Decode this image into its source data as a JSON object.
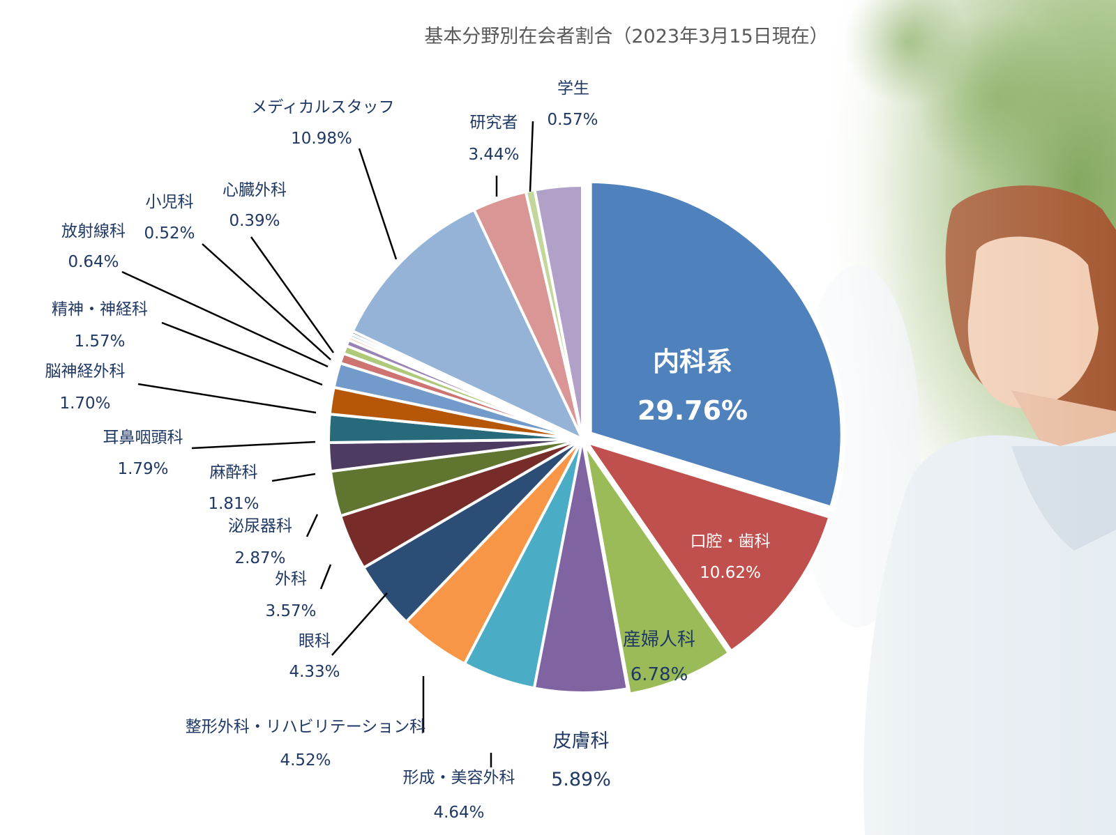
{
  "title": "基本分野別在会者割合（2023年3月15日現在）",
  "colors": {
    "leader_line": "#000000",
    "label_text": "#1f3864",
    "title_text": "#595959"
  },
  "chart_data": {
    "type": "pie",
    "title": "基本分野別在会者割合（2023年3月15日現在）",
    "unit": "%",
    "start": "12 o'clock",
    "direction": "clockwise",
    "slices": [
      {
        "label": "内科系",
        "value": 29.76,
        "value_label": "29.76%",
        "color": "#4f81bd"
      },
      {
        "label": "口腔・歯科",
        "value": 10.62,
        "value_label": "10.62%",
        "color": "#c0504d"
      },
      {
        "label": "産婦人科",
        "value": 6.78,
        "value_label": "6.78%",
        "color": "#9bbb59"
      },
      {
        "label": "皮膚科",
        "value": 5.89,
        "value_label": "5.89%",
        "color": "#8064a2"
      },
      {
        "label": "形成・美容外科",
        "value": 4.64,
        "value_label": "4.64%",
        "color": "#4bacc6"
      },
      {
        "label": "整形外科・リハビリテーション科",
        "value": 4.52,
        "value_label": "4.52%",
        "color": "#f79646"
      },
      {
        "label": "眼科",
        "value": 4.33,
        "value_label": "4.33%",
        "color": "#2c4d75"
      },
      {
        "label": "外科",
        "value": 3.57,
        "value_label": "3.57%",
        "color": "#772c2a"
      },
      {
        "label": "泌尿器科",
        "value": 2.87,
        "value_label": "2.87%",
        "color": "#5f7530"
      },
      {
        "label": "麻酔科",
        "value": 1.81,
        "value_label": "1.81%",
        "color": "#4d3b62"
      },
      {
        "label": "耳鼻咽頭科",
        "value": 1.79,
        "value_label": "1.79%",
        "color": "#276a7c"
      },
      {
        "label": "脳神経外科",
        "value": 1.7,
        "value_label": "1.70%",
        "color": "#b65708"
      },
      {
        "label": "精神・神経科",
        "value": 1.57,
        "value_label": "1.57%",
        "color": "#729aca"
      },
      {
        "label": "放射線科",
        "value": 0.64,
        "value_label": "0.64%",
        "color": "#cd7371"
      },
      {
        "label": "小児科",
        "value": 0.52,
        "value_label": "0.52%",
        "color": "#afc97a"
      },
      {
        "label": "心臓外科",
        "value": 0.39,
        "value_label": "0.39%",
        "color": "#9983b5"
      },
      {
        "label": "",
        "value": 0.21,
        "value_label": "",
        "color": "#f9ab6b"
      },
      {
        "label": "",
        "value": 0.2,
        "value_label": "",
        "color": "#6fbdd1"
      },
      {
        "label": "",
        "value": 0.2,
        "value_label": "",
        "color": "#3a6598"
      },
      {
        "label": "メディカルスタッフ",
        "value": 10.98,
        "value_label": "10.98%",
        "color": "#95b3d7"
      },
      {
        "label": "研究者",
        "value": 3.44,
        "value_label": "3.44%",
        "color": "#d99694"
      },
      {
        "label": "学生",
        "value": 0.57,
        "value_label": "0.57%",
        "color": "#c3d69b"
      },
      {
        "label": "",
        "value": 3.01,
        "value_label": "",
        "color": "#b1a0c7"
      }
    ]
  }
}
